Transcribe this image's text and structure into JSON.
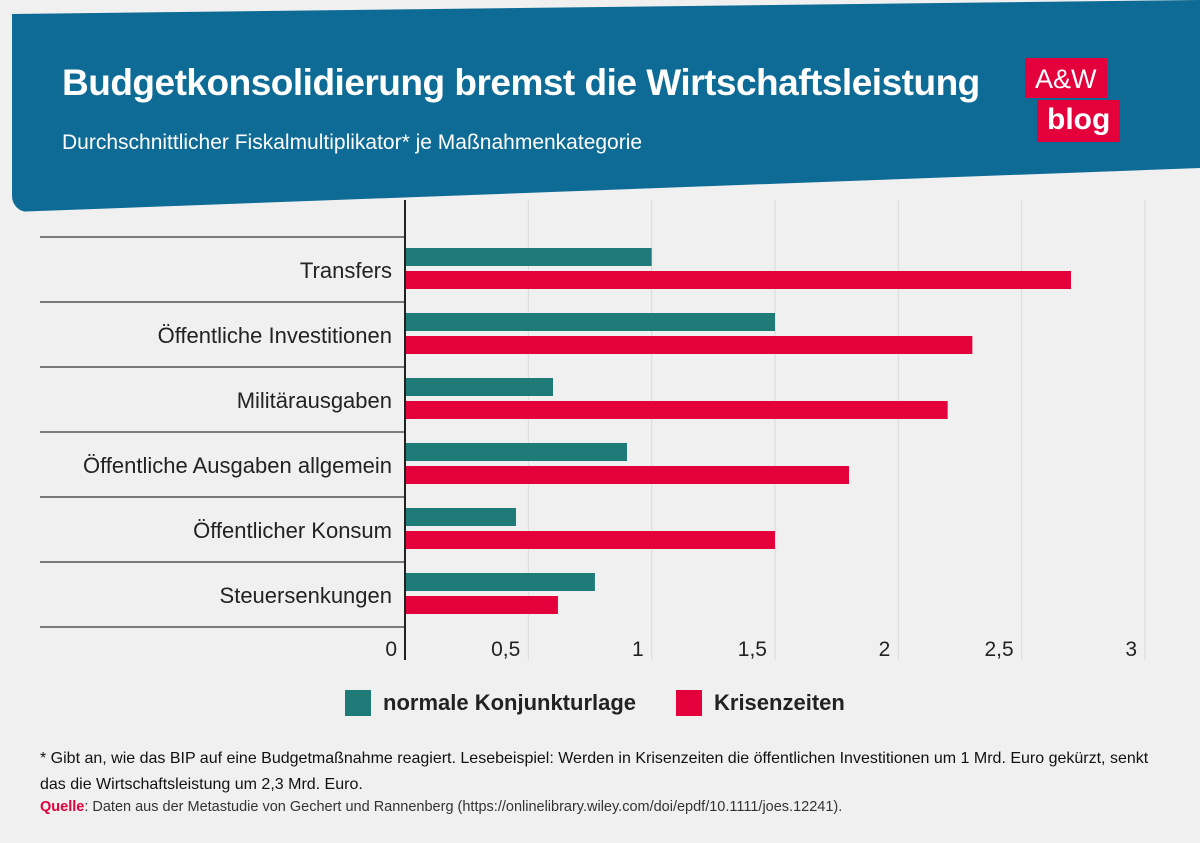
{
  "header": {
    "title": "Budgetkonsolidierung bremst die Wirtschaftsleistung",
    "subtitle": "Durchschnittlicher Fiskalmultiplikator* je Maßnahmenkategorie"
  },
  "logo": {
    "top": "A&W",
    "bottom": "blog"
  },
  "colors": {
    "header_bg": "#0e6b95",
    "series_normal": "#1e7b78",
    "series_crisis": "#e4003a",
    "logo": "#e4003a"
  },
  "chart_data": {
    "type": "bar",
    "orientation": "horizontal",
    "title": "Budgetkonsolidierung bremst die Wirtschaftsleistung",
    "subtitle": "Durchschnittlicher Fiskalmultiplikator* je Maßnahmenkategorie",
    "categories": [
      "Transfers",
      "Öffentliche Investitionen",
      "Militärausgaben",
      "Öffentliche Ausgaben allgemein",
      "Öffentlicher Konsum",
      "Steuersenkungen"
    ],
    "series": [
      {
        "name": "normale Konjunkturlage",
        "color": "#1e7b78",
        "values": [
          1.0,
          1.5,
          0.6,
          0.9,
          0.45,
          0.77
        ]
      },
      {
        "name": "Krisenzeiten",
        "color": "#e4003a",
        "values": [
          2.7,
          2.3,
          2.2,
          1.8,
          1.5,
          0.62
        ]
      }
    ],
    "xlim": [
      0,
      3
    ],
    "xticks": [
      "0",
      "0,5",
      "1",
      "1,5",
      "2",
      "2,5",
      "3"
    ],
    "xtick_values": [
      0,
      0.5,
      1,
      1.5,
      2,
      2.5,
      3
    ],
    "grid": true,
    "legend_position": "bottom"
  },
  "footnote": "* Gibt an, wie das BIP auf eine Budgetmaßnahme reagiert. Lesebeispiel: Werden in Krisenzeiten die öffentlichen Investitionen um 1 Mrd. Euro gekürzt, senkt das die Wirtschaftsleistung um 2,3 Mrd. Euro.",
  "source": {
    "label": "Quelle",
    "text": ": Daten aus der Metastudie von Gechert und Rannenberg (https://onlinelibrary.wiley.com/doi/epdf/10.1111/joes.12241)."
  }
}
